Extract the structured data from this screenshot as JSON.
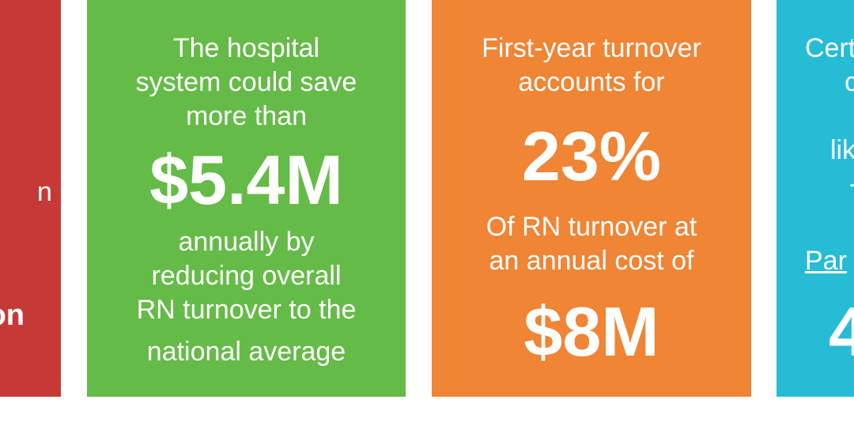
{
  "cards": [
    {
      "color": "#c53a36",
      "lines": [
        "n",
        "on"
      ]
    },
    {
      "color": "#65bb47",
      "intro": [
        "The hospital",
        "system could save",
        "more than"
      ],
      "value": "$5.4M",
      "outro": [
        "annually by",
        "reducing overall",
        "RN turnover to the",
        "national average"
      ]
    },
    {
      "color": "#ef8535",
      "intro": [
        "First-year turnover",
        "accounts for"
      ],
      "value1": "23%",
      "middle": [
        "Of RN turnover at",
        "an annual cost of"
      ],
      "value2": "$8M"
    },
    {
      "color": "#27bcd5",
      "lines": [
        "Cert",
        "c",
        "lik",
        "-",
        "Par",
        "4"
      ]
    }
  ]
}
